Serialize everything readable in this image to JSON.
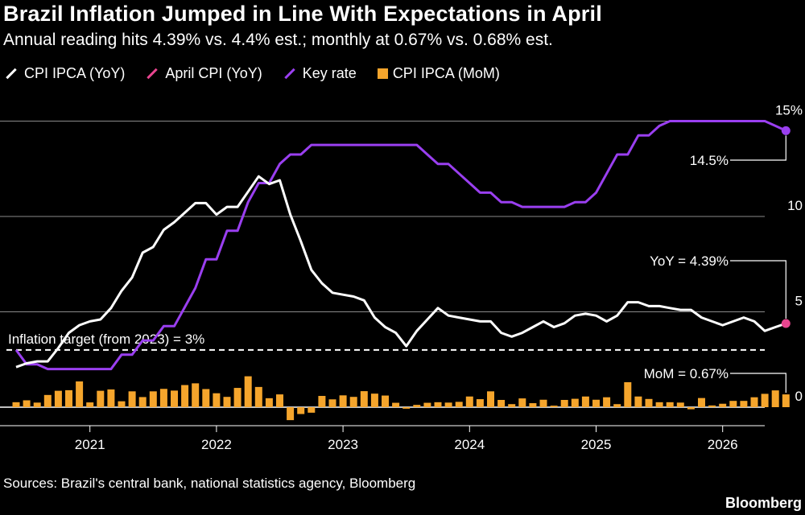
{
  "header": {
    "title": "Brazil Inflation Jumped in Line With Expectations in April",
    "subtitle": "Annual reading hits 4.39% vs. 4.4% est.; monthly at 0.67% vs. 0.68% est."
  },
  "legend": [
    {
      "label": "CPI IPCA (YoY)",
      "color": "#ffffff",
      "shape": "line"
    },
    {
      "label": "April CPI (YoY)",
      "color": "#e8458f",
      "shape": "line"
    },
    {
      "label": "Key rate",
      "color": "#9a3ff0",
      "shape": "line"
    },
    {
      "label": "CPI IPCA (MoM)",
      "color": "#f5a52c",
      "shape": "square"
    }
  ],
  "footer": {
    "source": "Sources: Brazil's central bank, national statistics agency, Bloomberg",
    "brand": "Bloomberg"
  },
  "chart_data": {
    "type": "line",
    "title": "Brazil Inflation Jumped in Line With Expectations in April",
    "subtitle": "Annual reading hits 4.39% vs. 4.4% est.; monthly at 0.67% vs. 0.68% est.",
    "x_start": "2020-06",
    "x_end": "2026-04",
    "x_ticks": [
      "2021",
      "2022",
      "2023",
      "2024",
      "2025",
      "2026"
    ],
    "y_ticks": [
      "0",
      "5",
      "10",
      "15%"
    ],
    "ylim": [
      -0.8,
      15.8
    ],
    "grid": true,
    "legend_position": "top-left",
    "series": [
      {
        "name": "CPI IPCA (YoY)",
        "color": "#ffffff",
        "type": "line",
        "values": [
          2.1,
          2.3,
          2.4,
          2.4,
          3.1,
          3.9,
          4.3,
          4.5,
          4.6,
          5.2,
          6.1,
          6.8,
          8.1,
          8.4,
          9.3,
          9.7,
          10.2,
          10.7,
          10.7,
          10.1,
          10.5,
          10.5,
          11.3,
          12.1,
          11.7,
          11.9,
          10.1,
          8.7,
          7.2,
          6.5,
          6.0,
          5.9,
          5.8,
          5.6,
          4.7,
          4.2,
          3.9,
          3.2,
          4.0,
          4.6,
          5.2,
          4.8,
          4.7,
          4.6,
          4.5,
          4.5,
          3.9,
          3.7,
          3.9,
          4.2,
          4.5,
          4.2,
          4.4,
          4.8,
          4.9,
          4.8,
          4.5,
          4.8,
          5.5,
          5.5,
          5.3,
          5.3,
          5.2,
          5.1,
          5.1,
          4.7,
          4.5,
          4.3,
          4.5,
          4.7,
          4.5,
          4.0,
          4.2,
          4.39
        ]
      },
      {
        "name": "Key rate",
        "color": "#9a3ff0",
        "type": "line",
        "values": [
          3.0,
          2.25,
          2.25,
          2.0,
          2.0,
          2.0,
          2.0,
          2.0,
          2.0,
          2.0,
          2.75,
          2.75,
          3.5,
          3.5,
          4.25,
          4.25,
          5.25,
          6.25,
          7.75,
          7.75,
          9.25,
          9.25,
          10.75,
          11.75,
          11.75,
          12.75,
          13.25,
          13.25,
          13.75,
          13.75,
          13.75,
          13.75,
          13.75,
          13.75,
          13.75,
          13.75,
          13.75,
          13.75,
          13.75,
          13.25,
          12.75,
          12.75,
          12.25,
          11.75,
          11.25,
          11.25,
          10.75,
          10.75,
          10.5,
          10.5,
          10.5,
          10.5,
          10.5,
          10.75,
          10.75,
          11.25,
          12.25,
          13.25,
          13.25,
          14.25,
          14.25,
          14.75,
          15.0,
          15.0,
          15.0,
          15.0,
          15.0,
          15.0,
          15.0,
          15.0,
          15.0,
          15.0,
          14.75,
          14.5
        ]
      },
      {
        "name": "CPI IPCA (MoM)",
        "color": "#f5a52c",
        "type": "bar",
        "values": [
          0.26,
          0.36,
          0.24,
          0.64,
          0.86,
          0.89,
          1.35,
          0.25,
          0.86,
          0.93,
          0.31,
          0.83,
          0.53,
          0.83,
          0.96,
          0.87,
          1.16,
          1.25,
          0.95,
          0.73,
          0.54,
          1.01,
          1.62,
          1.06,
          0.47,
          0.67,
          -0.68,
          -0.36,
          -0.29,
          0.59,
          0.41,
          0.62,
          0.54,
          0.84,
          0.71,
          0.61,
          0.23,
          -0.08,
          0.12,
          0.23,
          0.26,
          0.24,
          0.28,
          0.56,
          0.42,
          0.83,
          0.38,
          0.16,
          0.46,
          0.21,
          0.39,
          0.08,
          0.38,
          0.44,
          0.56,
          0.39,
          0.52,
          0.16,
          1.31,
          0.56,
          0.43,
          0.26,
          0.26,
          0.24,
          -0.11,
          0.48,
          0.09,
          0.18,
          0.33,
          0.33,
          0.52,
          0.7,
          0.88,
          0.67
        ]
      }
    ],
    "annotations": [
      {
        "text": "Inflation target (from 2023) = 3%",
        "value": 3
      },
      {
        "text": "14.5%",
        "series": "Key rate",
        "value": 14.5
      },
      {
        "text": "YoY = 4.39%",
        "series": "April CPI (YoY)",
        "value": 4.39
      },
      {
        "text": "MoM = 0.67%",
        "series": "CPI IPCA (MoM)",
        "value": 0.67
      }
    ],
    "april_cpi_point": {
      "name": "April CPI (YoY)",
      "x": "2026-04",
      "y": 4.39,
      "color": "#e8458f"
    }
  }
}
